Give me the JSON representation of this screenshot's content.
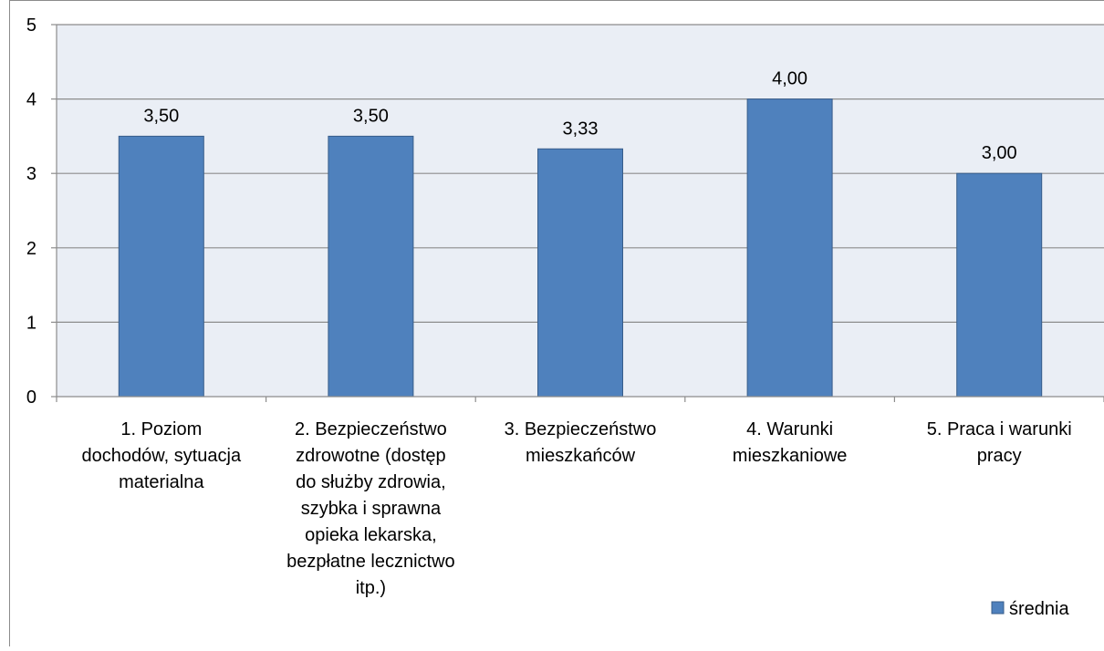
{
  "chart_data": {
    "type": "bar",
    "categories": [
      [
        "1. Poziom",
        "dochodów, sytuacja",
        "materialna"
      ],
      [
        "2. Bezpieczeństwo",
        "zdrowotne (dostęp",
        "do służby zdrowia,",
        "szybka i sprawna",
        "opieka lekarska,",
        "bezpłatne lecznictwo",
        "itp.)"
      ],
      [
        "3. Bezpieczeństwo",
        "mieszkańców"
      ],
      [
        "4. Warunki",
        "mieszkaniowe"
      ],
      [
        "5. Praca i warunki",
        "pracy"
      ]
    ],
    "series": [
      {
        "name": "średnia",
        "values": [
          3.5,
          3.5,
          3.33,
          4.0,
          3.0
        ],
        "labels": [
          "3,50",
          "3,50",
          "3,33",
          "4,00",
          "3,00"
        ]
      }
    ],
    "ylim": [
      0,
      5
    ],
    "yticks": [
      "0",
      "1",
      "2",
      "3",
      "4",
      "5"
    ],
    "grid": true,
    "legend_position": "bottom-right",
    "colors": {
      "bar": "#4f81bd",
      "bar_border": "#385d8a",
      "plot_bg": "#eaeef5",
      "grid": "#8c8c8c",
      "axis": "#8c8c8c"
    }
  }
}
